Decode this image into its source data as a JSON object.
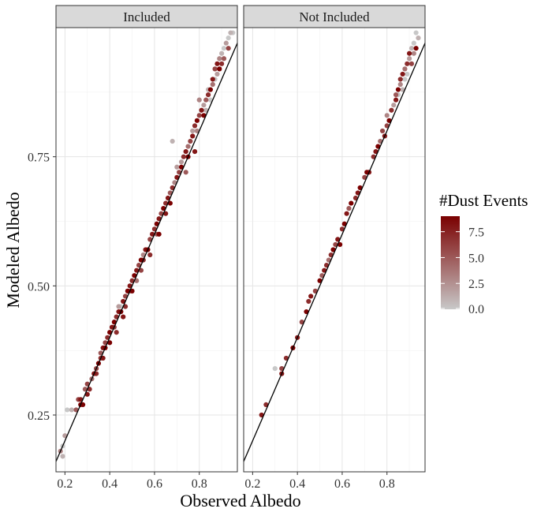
{
  "chart_data": {
    "type": "scatter",
    "xlabel": "Observed Albedo",
    "ylabel": "Modeled Albedo",
    "xlim": [
      0.16,
      0.97
    ],
    "ylim": [
      0.14,
      1.0
    ],
    "x_ticks": [
      0.2,
      0.4,
      0.6,
      0.8
    ],
    "y_ticks": [
      0.25,
      0.5,
      0.75
    ],
    "x_tick_labels": [
      "0.2",
      "0.4",
      "0.6",
      "0.8"
    ],
    "y_tick_labels": [
      "0.25",
      "0.50",
      "0.75"
    ],
    "grid": true,
    "reference_line": "y = x",
    "legend": {
      "title": "#Dust Events",
      "placement": "right",
      "min": 0,
      "max": 9,
      "ticks": [
        0,
        2.5,
        5,
        7.5
      ],
      "tick_labels": [
        "0.0",
        "2.5",
        "5.0",
        "7.5"
      ],
      "color_low": "#c8c8c8",
      "color_high": "#7a0000"
    },
    "panels": [
      {
        "label": "Included",
        "points": [
          [
            0.18,
            0.18,
            3
          ],
          [
            0.19,
            0.17,
            1
          ],
          [
            0.19,
            0.19,
            0
          ],
          [
            0.2,
            0.21,
            2
          ],
          [
            0.21,
            0.26,
            0
          ],
          [
            0.23,
            0.26,
            1
          ],
          [
            0.25,
            0.26,
            5
          ],
          [
            0.26,
            0.28,
            6
          ],
          [
            0.27,
            0.27,
            9
          ],
          [
            0.27,
            0.28,
            8
          ],
          [
            0.29,
            0.3,
            5
          ],
          [
            0.3,
            0.31,
            6
          ],
          [
            0.31,
            0.3,
            7
          ],
          [
            0.32,
            0.32,
            4
          ],
          [
            0.33,
            0.33,
            8
          ],
          [
            0.34,
            0.34,
            6
          ],
          [
            0.35,
            0.35,
            9
          ],
          [
            0.36,
            0.36,
            7
          ],
          [
            0.36,
            0.37,
            5
          ],
          [
            0.37,
            0.38,
            8
          ],
          [
            0.38,
            0.38,
            9
          ],
          [
            0.38,
            0.39,
            6
          ],
          [
            0.39,
            0.4,
            7
          ],
          [
            0.4,
            0.41,
            9
          ],
          [
            0.41,
            0.42,
            8
          ],
          [
            0.42,
            0.42,
            6
          ],
          [
            0.42,
            0.43,
            9
          ],
          [
            0.43,
            0.44,
            7
          ],
          [
            0.44,
            0.45,
            8
          ],
          [
            0.44,
            0.46,
            2
          ],
          [
            0.45,
            0.45,
            9
          ],
          [
            0.45,
            0.46,
            0
          ],
          [
            0.46,
            0.47,
            8
          ],
          [
            0.47,
            0.48,
            6
          ],
          [
            0.47,
            0.46,
            7
          ],
          [
            0.48,
            0.49,
            9
          ],
          [
            0.49,
            0.5,
            8
          ],
          [
            0.49,
            0.49,
            5
          ],
          [
            0.5,
            0.51,
            7
          ],
          [
            0.51,
            0.52,
            9
          ],
          [
            0.52,
            0.53,
            8
          ],
          [
            0.52,
            0.51,
            4
          ],
          [
            0.53,
            0.54,
            6
          ],
          [
            0.54,
            0.55,
            9
          ],
          [
            0.55,
            0.55,
            7
          ],
          [
            0.55,
            0.56,
            3
          ],
          [
            0.56,
            0.57,
            8
          ],
          [
            0.57,
            0.57,
            9
          ],
          [
            0.58,
            0.59,
            6
          ],
          [
            0.59,
            0.6,
            8
          ],
          [
            0.6,
            0.61,
            7
          ],
          [
            0.61,
            0.62,
            9
          ],
          [
            0.61,
            0.6,
            5
          ],
          [
            0.62,
            0.63,
            8
          ],
          [
            0.63,
            0.64,
            6
          ],
          [
            0.64,
            0.65,
            9
          ],
          [
            0.65,
            0.66,
            7
          ],
          [
            0.66,
            0.67,
            8
          ],
          [
            0.67,
            0.68,
            5
          ],
          [
            0.67,
            0.66,
            9
          ],
          [
            0.68,
            0.69,
            7
          ],
          [
            0.69,
            0.7,
            3
          ],
          [
            0.68,
            0.78,
            1
          ],
          [
            0.7,
            0.71,
            8
          ],
          [
            0.71,
            0.72,
            6
          ],
          [
            0.72,
            0.73,
            9
          ],
          [
            0.72,
            0.74,
            2
          ],
          [
            0.73,
            0.75,
            7
          ],
          [
            0.74,
            0.76,
            8
          ],
          [
            0.75,
            0.77,
            4
          ],
          [
            0.75,
            0.75,
            9
          ],
          [
            0.76,
            0.78,
            6
          ],
          [
            0.77,
            0.79,
            8
          ],
          [
            0.77,
            0.8,
            2
          ],
          [
            0.78,
            0.81,
            7
          ],
          [
            0.79,
            0.82,
            9
          ],
          [
            0.79,
            0.8,
            3
          ],
          [
            0.8,
            0.83,
            6
          ],
          [
            0.81,
            0.84,
            8
          ],
          [
            0.82,
            0.85,
            2
          ],
          [
            0.82,
            0.83,
            9
          ],
          [
            0.83,
            0.86,
            5
          ],
          [
            0.84,
            0.87,
            7
          ],
          [
            0.84,
            0.88,
            1
          ],
          [
            0.85,
            0.88,
            9
          ],
          [
            0.86,
            0.89,
            4
          ],
          [
            0.86,
            0.9,
            8
          ],
          [
            0.87,
            0.9,
            0
          ],
          [
            0.87,
            0.92,
            6
          ],
          [
            0.88,
            0.91,
            2
          ],
          [
            0.88,
            0.93,
            8
          ],
          [
            0.89,
            0.92,
            9
          ],
          [
            0.89,
            0.94,
            3
          ],
          [
            0.9,
            0.95,
            1
          ],
          [
            0.9,
            0.93,
            7
          ],
          [
            0.91,
            0.96,
            0
          ],
          [
            0.91,
            0.94,
            5
          ],
          [
            0.92,
            0.97,
            2
          ],
          [
            0.93,
            0.98,
            0
          ],
          [
            0.93,
            0.96,
            6
          ],
          [
            0.94,
            0.99,
            1
          ],
          [
            0.95,
            0.99,
            0
          ],
          [
            0.85,
            0.86,
            0
          ],
          [
            0.83,
            0.84,
            1
          ],
          [
            0.8,
            0.86,
            3
          ],
          [
            0.78,
            0.76,
            8
          ],
          [
            0.74,
            0.72,
            5
          ],
          [
            0.7,
            0.73,
            2
          ],
          [
            0.65,
            0.64,
            8
          ],
          [
            0.62,
            0.6,
            9
          ],
          [
            0.58,
            0.56,
            7
          ],
          [
            0.54,
            0.53,
            6
          ],
          [
            0.5,
            0.49,
            9
          ],
          [
            0.46,
            0.44,
            8
          ],
          [
            0.43,
            0.41,
            7
          ],
          [
            0.4,
            0.39,
            9
          ],
          [
            0.37,
            0.36,
            8
          ],
          [
            0.34,
            0.33,
            7
          ],
          [
            0.3,
            0.29,
            8
          ],
          [
            0.28,
            0.27,
            9
          ]
        ]
      },
      {
        "label": "Not Included",
        "points": [
          [
            0.24,
            0.25,
            8
          ],
          [
            0.26,
            0.27,
            7
          ],
          [
            0.3,
            0.34,
            0
          ],
          [
            0.33,
            0.33,
            8
          ],
          [
            0.33,
            0.34,
            6
          ],
          [
            0.35,
            0.36,
            7
          ],
          [
            0.38,
            0.38,
            9
          ],
          [
            0.4,
            0.4,
            8
          ],
          [
            0.42,
            0.43,
            6
          ],
          [
            0.44,
            0.45,
            9
          ],
          [
            0.45,
            0.47,
            7
          ],
          [
            0.46,
            0.48,
            8
          ],
          [
            0.48,
            0.49,
            6
          ],
          [
            0.5,
            0.51,
            9
          ],
          [
            0.51,
            0.52,
            5
          ],
          [
            0.52,
            0.53,
            8
          ],
          [
            0.53,
            0.54,
            7
          ],
          [
            0.54,
            0.55,
            4
          ],
          [
            0.56,
            0.57,
            9
          ],
          [
            0.57,
            0.58,
            6
          ],
          [
            0.58,
            0.59,
            8
          ],
          [
            0.59,
            0.58,
            9
          ],
          [
            0.6,
            0.61,
            7
          ],
          [
            0.62,
            0.64,
            8
          ],
          [
            0.63,
            0.65,
            5
          ],
          [
            0.64,
            0.66,
            9
          ],
          [
            0.66,
            0.67,
            7
          ],
          [
            0.68,
            0.69,
            9
          ],
          [
            0.7,
            0.71,
            6
          ],
          [
            0.72,
            0.72,
            8
          ],
          [
            0.74,
            0.75,
            7
          ],
          [
            0.76,
            0.77,
            9
          ],
          [
            0.77,
            0.78,
            4
          ],
          [
            0.79,
            0.79,
            8
          ],
          [
            0.8,
            0.81,
            6
          ],
          [
            0.8,
            0.83,
            3
          ],
          [
            0.81,
            0.82,
            9
          ],
          [
            0.82,
            0.84,
            7
          ],
          [
            0.83,
            0.85,
            2
          ],
          [
            0.84,
            0.86,
            8
          ],
          [
            0.84,
            0.87,
            5
          ],
          [
            0.85,
            0.87,
            0
          ],
          [
            0.85,
            0.88,
            9
          ],
          [
            0.86,
            0.89,
            3
          ],
          [
            0.86,
            0.9,
            7
          ],
          [
            0.87,
            0.88,
            1
          ],
          [
            0.87,
            0.91,
            8
          ],
          [
            0.88,
            0.9,
            0
          ],
          [
            0.88,
            0.92,
            4
          ],
          [
            0.89,
            0.93,
            7
          ],
          [
            0.89,
            0.91,
            0
          ],
          [
            0.9,
            0.94,
            2
          ],
          [
            0.9,
            0.95,
            8
          ],
          [
            0.91,
            0.96,
            1
          ],
          [
            0.91,
            0.93,
            6
          ],
          [
            0.92,
            0.97,
            0
          ],
          [
            0.92,
            0.95,
            3
          ],
          [
            0.93,
            0.99,
            0
          ],
          [
            0.93,
            0.96,
            9
          ],
          [
            0.94,
            0.98,
            1
          ],
          [
            0.78,
            0.8,
            6
          ],
          [
            0.75,
            0.76,
            8
          ],
          [
            0.71,
            0.72,
            9
          ],
          [
            0.67,
            0.68,
            8
          ],
          [
            0.61,
            0.62,
            9
          ],
          [
            0.55,
            0.56,
            7
          ]
        ]
      }
    ]
  }
}
